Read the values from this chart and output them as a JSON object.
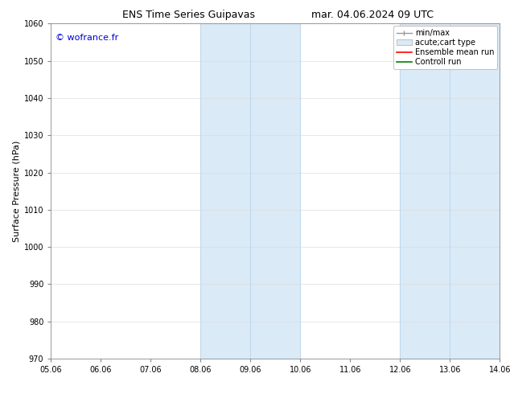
{
  "title_left": "ENS Time Series Guipavas",
  "title_right": "mar. 04.06.2024 09 UTC",
  "ylabel": "Surface Pressure (hPa)",
  "ylim": [
    970,
    1060
  ],
  "yticks": [
    970,
    980,
    990,
    1000,
    1010,
    1020,
    1030,
    1040,
    1050,
    1060
  ],
  "xtick_labels": [
    "05.06",
    "06.06",
    "07.06",
    "08.06",
    "09.06",
    "10.06",
    "11.06",
    "12.06",
    "13.06",
    "14.06"
  ],
  "xtick_positions": [
    0,
    1,
    2,
    3,
    4,
    5,
    6,
    7,
    8,
    9
  ],
  "xlim": [
    0,
    9
  ],
  "shaded_bands": [
    {
      "x_start": 3,
      "x_end": 5,
      "color": "#daeaf7"
    },
    {
      "x_start": 7,
      "x_end": 9,
      "color": "#daeaf7"
    }
  ],
  "band_edge_lines": [
    {
      "x": 3
    },
    {
      "x": 4
    },
    {
      "x": 5
    },
    {
      "x": 7
    },
    {
      "x": 8
    },
    {
      "x": 9
    }
  ],
  "band_edge_color": "#c0d8ee",
  "watermark": "© wofrance.fr",
  "watermark_color": "#0000cc",
  "background_color": "#ffffff",
  "legend_items": [
    {
      "label": "min/max",
      "style": "minmax",
      "color": "#999999"
    },
    {
      "label": "acute;cart type",
      "style": "band",
      "color": "#daeaf7"
    },
    {
      "label": "Ensemble mean run",
      "style": "line",
      "color": "#ff0000"
    },
    {
      "label": "Controll run",
      "style": "line",
      "color": "#008000"
    }
  ],
  "title_fontsize": 9,
  "ylabel_fontsize": 8,
  "tick_fontsize": 7,
  "legend_fontsize": 7,
  "watermark_fontsize": 8
}
